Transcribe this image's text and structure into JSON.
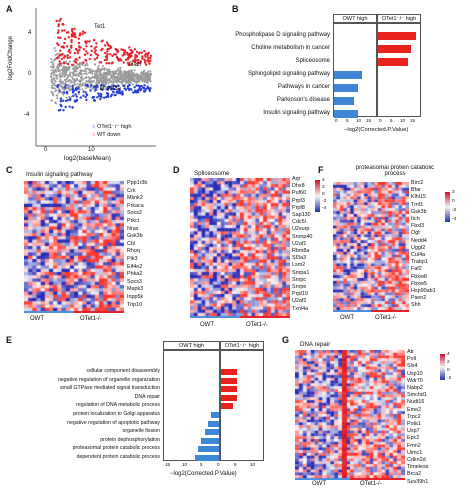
{
  "panel_letters": {
    "a": "A",
    "b": "B",
    "c": "C",
    "d": "D",
    "e": "E",
    "f": "F",
    "g": "G"
  },
  "panelA": {
    "ylabel": "log2FoldChange",
    "xlabel": "log2(baseMean)",
    "yticks": [
      "4",
      "0",
      "-4"
    ],
    "xticks": [
      "0",
      "10"
    ],
    "labels": {
      "tet1": "Tet1",
      "dazl": "Dazl",
      "dnmt3a": "Dnmt3a"
    },
    "legend": [
      "OTet1⁻/⁻ high",
      "WT down"
    ],
    "colors": {
      "up": "#e8222a",
      "down": "#2a3fd4",
      "ns": "#9a9a9a"
    }
  },
  "panelB": {
    "headers": [
      "OWT high",
      "OTet1⁻/⁻ high"
    ],
    "terms_red": [
      "Phospholipase D signaling pathway",
      "Choline metabolism in cancer",
      "Spliceosome"
    ],
    "terms_blue": [
      "Sphingolipid signaling pathway",
      "Pathways in cancer",
      "Parkinson's disease",
      "Insulin signaling pathway"
    ],
    "xlabel": "−log2(Corrected.P.Value)",
    "xticks": [
      "0",
      "5",
      "10",
      "15",
      "0",
      "5",
      "10",
      "15"
    ],
    "colors": {
      "red": "#e8231d",
      "blue": "#3f87d6"
    }
  },
  "panelC": {
    "title": "Insulin signaling pathway",
    "genes": [
      "Ppp1r3b",
      "Crk",
      "Mknk2",
      "Prkaca",
      "Socs2",
      "Prkci",
      "Nras",
      "Gsk3b",
      "Cbl",
      "Rhoq",
      "Pik3",
      "Eif4e2",
      "Phka2",
      "Socs3",
      "Mapk3",
      "Inpp5k",
      "Trip10"
    ],
    "groups": [
      "OWT",
      "OTet1-/-"
    ]
  },
  "panelD": {
    "title": "Spliceosome",
    "genes": [
      "Aqr",
      "Dhx8",
      "Puf60",
      "Prpf3",
      "Prpf8",
      "Sap130",
      "Cdc5l",
      "U2surp",
      "Snrnp40",
      "U2af1",
      "Rbm8a",
      "Sf3a3",
      "Lsm2",
      "Snrpa1",
      "Snrpc",
      "Snrpe",
      "Prpf19",
      "U2af2",
      "Txnl4a"
    ],
    "groups": [
      "OWT",
      "OTet1-/-"
    ],
    "colorbar": [
      "4",
      "2",
      "0",
      "-2",
      "-4"
    ]
  },
  "panelE": {
    "headers": [
      "OWT high",
      "OTet1⁻/⁻ high"
    ],
    "terms_red": [
      "cellular component disassembly",
      "negative regulation of organelle organization",
      "small GTPase mediated signal transduction",
      "DNA repair",
      "regulation of DNA metabolic process"
    ],
    "terms_blue": [
      "protein localization to Golgi apparatus",
      "negative regulation of apoptotic pathway",
      "organelle fission",
      "protein dephosphorylation",
      "proteasomal protein catabolic process",
      "dependent protein catabolic process"
    ],
    "xlabel": "−log2(Corrected.P.Value)",
    "xticks": [
      "15",
      "10",
      "5",
      "0",
      "5",
      "10"
    ],
    "colors": {
      "red": "#e8231d",
      "blue": "#3f87d6"
    }
  },
  "panelF": {
    "title": "proteasomal protein catabolic process",
    "genes": [
      "Birc2",
      "Bfar",
      "Klhl15",
      "Tmf1",
      "Gsk3b",
      "Itch",
      "Fbxl3",
      "Ogt",
      "Nedd4",
      "Uggt2",
      "Cul4a",
      "Trabp1",
      "Faf2",
      "Fbxw8",
      "Fbxw5",
      "Hsp90ab1",
      "Psen2",
      "Shh"
    ],
    "groups": [
      "OWT",
      "OTet1-/-"
    ],
    "colorbar": [
      "2",
      "0",
      "-2",
      "-4"
    ]
  },
  "panelG": {
    "title": "DNA repair",
    "genes": [
      "Atr",
      "Poli",
      "Slx4",
      "Usp10",
      "Wdr70",
      "Nabp2",
      "Smchd1",
      "Nudt16",
      "Eme2",
      "Trpc2",
      "Pola1",
      "Usp7",
      "Epc2",
      "Fmn2",
      "Uimc1",
      "Cdkn2d",
      "Timeless",
      "Brca2",
      "Suv39h1"
    ],
    "groups": [
      "OWT",
      "OTet1-/-"
    ],
    "colorbar": [
      "4",
      "2",
      "0",
      "-2"
    ]
  }
}
